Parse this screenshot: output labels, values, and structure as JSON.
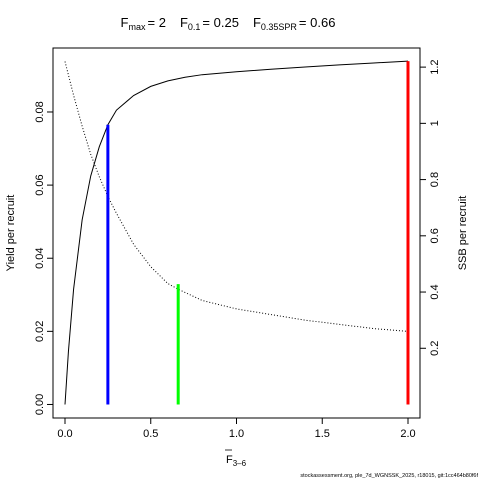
{
  "chart_data": {
    "type": "line",
    "title": {
      "fmax": {
        "base": "F",
        "sub": "max",
        "value": "= 2"
      },
      "f01": {
        "base": "F",
        "sub": "0.1",
        "value": "= 0.25"
      },
      "fspr": {
        "base": "F",
        "sub": "0.35SPR",
        "value": "= 0.66"
      }
    },
    "xlabel": {
      "base": "F",
      "sub": "3–6"
    },
    "ylabel": "Yield per recruit",
    "y2label": "SSB per recruit",
    "xlim": [
      -0.07,
      2.07
    ],
    "ylim": [
      -0.0037,
      0.0975
    ],
    "y2lim": [
      -0.048,
      1.268
    ],
    "x_ticks": [
      0.0,
      0.5,
      1.0,
      1.5,
      2.0
    ],
    "x_tick_labels": [
      "0.0",
      "0.5",
      "1.0",
      "1.5",
      "2.0"
    ],
    "y_ticks": [
      0.0,
      0.02,
      0.04,
      0.06,
      0.08
    ],
    "y_tick_labels": [
      "0.00",
      "0.02",
      "0.04",
      "0.06",
      "0.08"
    ],
    "y2_ticks": [
      0.2,
      0.4,
      0.6,
      0.8,
      1.0,
      1.2
    ],
    "y2_tick_labels": [
      "0.2",
      "0.4",
      "0.6",
      "0.8",
      "1",
      "1.2"
    ],
    "grid": false,
    "series": [
      {
        "axis": "left",
        "style": "solid",
        "color": "#000000",
        "x": [
          0,
          0.02,
          0.05,
          0.1,
          0.15,
          0.2,
          0.25,
          0.3,
          0.4,
          0.5,
          0.6,
          0.7,
          0.8,
          1.0,
          1.2,
          1.4,
          1.6,
          1.8,
          2.0
        ],
        "y": [
          0.0,
          0.0145,
          0.0315,
          0.0505,
          0.0625,
          0.0705,
          0.0765,
          0.0805,
          0.0845,
          0.087,
          0.0885,
          0.0895,
          0.0902,
          0.091,
          0.0917,
          0.0923,
          0.0929,
          0.0934,
          0.0939
        ]
      },
      {
        "axis": "right",
        "style": "dotted",
        "color": "#000000",
        "x": [
          0,
          0.05,
          0.1,
          0.15,
          0.2,
          0.25,
          0.3,
          0.4,
          0.5,
          0.6,
          0.66,
          0.8,
          1.0,
          1.2,
          1.4,
          1.6,
          1.8,
          2.0
        ],
        "y": [
          1.22,
          1.1,
          0.99,
          0.89,
          0.81,
          0.74,
          0.68,
          0.57,
          0.49,
          0.43,
          0.41,
          0.37,
          0.34,
          0.32,
          0.3,
          0.285,
          0.27,
          0.26
        ]
      }
    ],
    "reference_lines": [
      {
        "x": 0.25,
        "y_from": 0,
        "y_to": 0.0765,
        "color": "#0000ff"
      },
      {
        "x": 0.66,
        "y_from": 0,
        "y_to": 0.0329,
        "color": "#00ff00"
      },
      {
        "x": 2.0,
        "y_from": 0,
        "y_to": 0.0939,
        "color": "#ff0000"
      }
    ]
  },
  "footer": "stockassessment.org, ple_7d_WGNSSK_2025, r18015, git:1cc464b80f6f"
}
